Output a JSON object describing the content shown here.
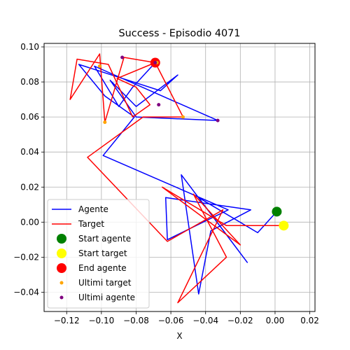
{
  "chart_data": {
    "type": "line",
    "title": "Success - Episodio 4071",
    "xlabel": "X",
    "ylabel": "",
    "xlim": [
      -0.133,
      0.023
    ],
    "ylim": [
      -0.051,
      0.102
    ],
    "xticks": [
      -0.12,
      -0.1,
      -0.08,
      -0.06,
      -0.04,
      -0.02,
      0.0,
      0.02
    ],
    "xtick_labels": [
      "−0.12",
      "−0.10",
      "−0.08",
      "−0.06",
      "−0.04",
      "−0.02",
      "0.00",
      "0.02"
    ],
    "yticks": [
      -0.04,
      -0.02,
      0.0,
      0.02,
      0.04,
      0.06,
      0.08,
      0.1
    ],
    "ytick_labels": [
      "−0.04",
      "−0.02",
      "0.00",
      "0.02",
      "0.04",
      "0.06",
      "0.08",
      "0.10"
    ],
    "grid": true,
    "legend_placement": "lower-left",
    "series": [
      {
        "name": "Agente",
        "kind": "line",
        "color": "#0000ff",
        "points": [
          [
            0.001,
            0.006
          ],
          [
            -0.01,
            -0.006
          ],
          [
            -0.044,
            0.014
          ],
          [
            -0.016,
            -0.023
          ],
          [
            -0.054,
            0.027
          ],
          [
            -0.044,
            -0.041
          ],
          [
            -0.037,
            -0.005
          ],
          [
            -0.014,
            0.007
          ],
          [
            -0.063,
            0.014
          ],
          [
            -0.062,
            -0.01
          ],
          [
            -0.027,
            0.007
          ],
          [
            -0.099,
            0.038
          ],
          [
            -0.081,
            0.06
          ],
          [
            -0.098,
            0.072
          ],
          [
            -0.113,
            0.09
          ],
          [
            -0.066,
            0.075
          ],
          [
            -0.056,
            0.084
          ],
          [
            -0.08,
            0.066
          ],
          [
            -0.095,
            0.081
          ],
          [
            -0.08,
            0.06
          ],
          [
            -0.033,
            0.058
          ],
          [
            -0.104,
            0.089
          ],
          [
            -0.09,
            0.066
          ],
          [
            -0.082,
            0.077
          ],
          [
            -0.069,
            0.091
          ]
        ]
      },
      {
        "name": "Target",
        "kind": "line",
        "color": "#ff0000",
        "points": [
          [
            0.005,
            -0.002
          ],
          [
            -0.028,
            -0.002
          ],
          [
            -0.065,
            0.02
          ],
          [
            -0.02,
            -0.013
          ],
          [
            -0.047,
            0.016
          ],
          [
            -0.028,
            -0.02
          ],
          [
            -0.056,
            -0.046
          ],
          [
            -0.03,
            0.007
          ],
          [
            -0.062,
            -0.011
          ],
          [
            -0.108,
            0.037
          ],
          [
            -0.076,
            0.06
          ],
          [
            -0.053,
            0.06
          ],
          [
            -0.069,
            0.091
          ],
          [
            -0.087,
            0.094
          ],
          [
            -0.098,
            0.057
          ],
          [
            -0.101,
            0.096
          ],
          [
            -0.118,
            0.07
          ],
          [
            -0.114,
            0.093
          ],
          [
            -0.096,
            0.09
          ],
          [
            -0.082,
            0.06
          ],
          [
            -0.072,
            0.067
          ],
          [
            -0.08,
            0.077
          ],
          [
            -0.091,
            0.082
          ],
          [
            -0.069,
            0.091
          ]
        ]
      },
      {
        "name": "Start agente",
        "kind": "marker",
        "color": "#008000",
        "size": 7,
        "points": [
          [
            0.001,
            0.006
          ]
        ]
      },
      {
        "name": "Start target",
        "kind": "marker",
        "color": "#ffff00",
        "size": 7,
        "points": [
          [
            0.005,
            -0.002
          ]
        ]
      },
      {
        "name": "End agente",
        "kind": "marker",
        "color": "#ff0000",
        "size": 7,
        "points": [
          [
            -0.069,
            0.091
          ]
        ]
      },
      {
        "name": "Ultimi target",
        "kind": "marker",
        "color": "#ffa500",
        "size": 2.5,
        "points": [
          [
            -0.101,
            0.089
          ],
          [
            -0.098,
            0.057
          ],
          [
            -0.053,
            0.06
          ],
          [
            -0.068,
            0.091
          ]
        ]
      },
      {
        "name": "Ultimi agente",
        "kind": "marker",
        "color": "#800080",
        "size": 2.5,
        "points": [
          [
            -0.088,
            0.094
          ],
          [
            -0.067,
            0.067
          ],
          [
            -0.033,
            0.058
          ],
          [
            -0.069,
            0.091
          ]
        ]
      }
    ]
  }
}
